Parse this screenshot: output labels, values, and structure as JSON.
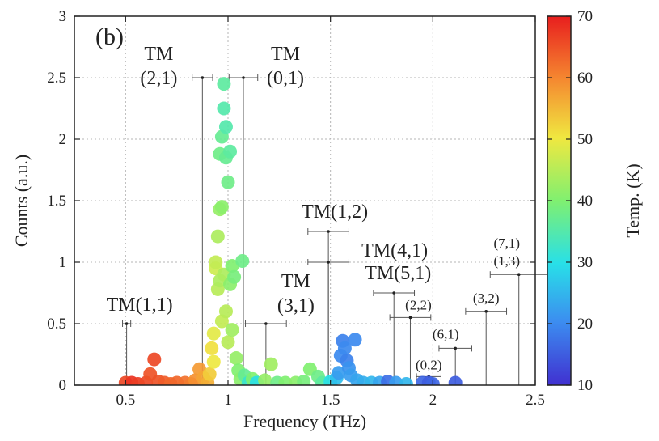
{
  "chart_data": {
    "type": "scatter",
    "panel_label": "(b)",
    "xlabel": "Frequency (THz)",
    "ylabel": "Counts (a.u.)",
    "colorbar_label": "Temp. (K)",
    "xlim": [
      0.25,
      2.5
    ],
    "ylim": [
      0,
      3
    ],
    "xticks": [
      "0.5",
      "1",
      "1.5",
      "2",
      "2.5"
    ],
    "yticks": [
      "0",
      "0.5",
      "1",
      "1.5",
      "2",
      "2.5",
      "3"
    ],
    "colorbar_range": [
      10,
      70
    ],
    "colorbar_ticks": [
      "10",
      "20",
      "30",
      "40",
      "50",
      "60",
      "70"
    ],
    "grid": true,
    "points": [
      {
        "x": 0.5,
        "y": 0.02,
        "t": 66
      },
      {
        "x": 0.53,
        "y": 0.02,
        "t": 68
      },
      {
        "x": 0.56,
        "y": 0.01,
        "t": 67
      },
      {
        "x": 0.6,
        "y": 0.02,
        "t": 66
      },
      {
        "x": 0.62,
        "y": 0.09,
        "t": 65
      },
      {
        "x": 0.64,
        "y": 0.21,
        "t": 66
      },
      {
        "x": 0.66,
        "y": 0.03,
        "t": 65
      },
      {
        "x": 0.69,
        "y": 0.02,
        "t": 64
      },
      {
        "x": 0.72,
        "y": 0.01,
        "t": 63
      },
      {
        "x": 0.75,
        "y": 0.02,
        "t": 63
      },
      {
        "x": 0.79,
        "y": 0.02,
        "t": 62
      },
      {
        "x": 0.82,
        "y": 0.01,
        "t": 61
      },
      {
        "x": 0.84,
        "y": 0.04,
        "t": 59
      },
      {
        "x": 0.86,
        "y": 0.13,
        "t": 58
      },
      {
        "x": 0.88,
        "y": 0.06,
        "t": 57
      },
      {
        "x": 0.9,
        "y": 0.02,
        "t": 56
      },
      {
        "x": 0.91,
        "y": 0.09,
        "t": 53
      },
      {
        "x": 0.92,
        "y": 0.3,
        "t": 51
      },
      {
        "x": 0.93,
        "y": 0.42,
        "t": 49
      },
      {
        "x": 0.93,
        "y": 0.19,
        "t": 50
      },
      {
        "x": 0.94,
        "y": 0.95,
        "t": 47
      },
      {
        "x": 0.94,
        "y": 1.0,
        "t": 46
      },
      {
        "x": 0.95,
        "y": 0.78,
        "t": 45
      },
      {
        "x": 0.95,
        "y": 1.21,
        "t": 44
      },
      {
        "x": 0.96,
        "y": 0.85,
        "t": 44
      },
      {
        "x": 0.96,
        "y": 1.43,
        "t": 42
      },
      {
        "x": 0.96,
        "y": 1.88,
        "t": 38
      },
      {
        "x": 0.97,
        "y": 2.02,
        "t": 37
      },
      {
        "x": 0.97,
        "y": 1.45,
        "t": 41
      },
      {
        "x": 0.97,
        "y": 0.52,
        "t": 46
      },
      {
        "x": 0.98,
        "y": 2.45,
        "t": 36
      },
      {
        "x": 0.98,
        "y": 0.9,
        "t": 44
      },
      {
        "x": 0.98,
        "y": 2.25,
        "t": 35
      },
      {
        "x": 0.99,
        "y": 2.1,
        "t": 35
      },
      {
        "x": 0.99,
        "y": 1.85,
        "t": 37
      },
      {
        "x": 0.99,
        "y": 0.6,
        "t": 45
      },
      {
        "x": 1.0,
        "y": 1.65,
        "t": 38
      },
      {
        "x": 1.0,
        "y": 0.35,
        "t": 45
      },
      {
        "x": 1.01,
        "y": 1.9,
        "t": 36
      },
      {
        "x": 1.01,
        "y": 0.82,
        "t": 41
      },
      {
        "x": 1.02,
        "y": 0.97,
        "t": 40
      },
      {
        "x": 1.02,
        "y": 0.45,
        "t": 43
      },
      {
        "x": 1.03,
        "y": 0.88,
        "t": 39
      },
      {
        "x": 1.04,
        "y": 0.22,
        "t": 42
      },
      {
        "x": 1.05,
        "y": 0.12,
        "t": 40
      },
      {
        "x": 1.06,
        "y": 0.05,
        "t": 41
      },
      {
        "x": 1.07,
        "y": 1.01,
        "t": 38
      },
      {
        "x": 1.08,
        "y": 0.08,
        "t": 37
      },
      {
        "x": 1.1,
        "y": 0.02,
        "t": 32
      },
      {
        "x": 1.12,
        "y": 0.05,
        "t": 40
      },
      {
        "x": 1.14,
        "y": 0.02,
        "t": 30
      },
      {
        "x": 1.18,
        "y": 0.04,
        "t": 42
      },
      {
        "x": 1.21,
        "y": 0.17,
        "t": 43
      },
      {
        "x": 1.24,
        "y": 0.02,
        "t": 38
      },
      {
        "x": 1.28,
        "y": 0.02,
        "t": 40
      },
      {
        "x": 1.33,
        "y": 0.02,
        "t": 41
      },
      {
        "x": 1.37,
        "y": 0.03,
        "t": 39
      },
      {
        "x": 1.4,
        "y": 0.13,
        "t": 40
      },
      {
        "x": 1.44,
        "y": 0.07,
        "t": 38
      },
      {
        "x": 1.46,
        "y": 0.02,
        "t": 36
      },
      {
        "x": 1.5,
        "y": 0.03,
        "t": 30
      },
      {
        "x": 1.53,
        "y": 0.06,
        "t": 26
      },
      {
        "x": 1.54,
        "y": 0.1,
        "t": 22
      },
      {
        "x": 1.55,
        "y": 0.24,
        "t": 20
      },
      {
        "x": 1.56,
        "y": 0.36,
        "t": 19
      },
      {
        "x": 1.57,
        "y": 0.3,
        "t": 20
      },
      {
        "x": 1.58,
        "y": 0.2,
        "t": 19
      },
      {
        "x": 1.59,
        "y": 0.14,
        "t": 21
      },
      {
        "x": 1.6,
        "y": 0.08,
        "t": 22
      },
      {
        "x": 1.62,
        "y": 0.37,
        "t": 20
      },
      {
        "x": 1.63,
        "y": 0.04,
        "t": 23
      },
      {
        "x": 1.66,
        "y": 0.02,
        "t": 24
      },
      {
        "x": 1.7,
        "y": 0.02,
        "t": 25
      },
      {
        "x": 1.74,
        "y": 0.02,
        "t": 23
      },
      {
        "x": 1.78,
        "y": 0.03,
        "t": 17
      },
      {
        "x": 1.82,
        "y": 0.02,
        "t": 22
      },
      {
        "x": 1.87,
        "y": 0.01,
        "t": 25
      },
      {
        "x": 1.95,
        "y": 0.02,
        "t": 16
      },
      {
        "x": 1.98,
        "y": 0.02,
        "t": 15
      },
      {
        "x": 2.0,
        "y": 0.01,
        "t": 16
      },
      {
        "x": 2.11,
        "y": 0.02,
        "t": 15
      }
    ],
    "mode_markers": [
      {
        "label_lines": [
          "TM(1,1)"
        ],
        "x": 0.505,
        "y": 0.5,
        "err": 0.02,
        "large": true
      },
      {
        "label_lines": [
          "TM",
          "(2,1)"
        ],
        "x": 0.875,
        "y": 2.5,
        "err": 0.05,
        "large": true
      },
      {
        "label_lines": [
          "TM",
          "(0,1)"
        ],
        "x": 1.075,
        "y": 2.5,
        "err": 0.07,
        "large": true
      },
      {
        "label_lines": [
          "TM",
          "(3,1)"
        ],
        "x": 1.185,
        "y": 0.5,
        "err": 0.1,
        "large": true
      },
      {
        "label_lines": [
          "TM(1,2)"
        ],
        "x": 1.49,
        "y": 1.25,
        "err": 0.1,
        "large": true
      },
      {
        "label_lines": [
          "TM(4,1)"
        ],
        "x": 1.49,
        "y": 1.0,
        "err": 0.1,
        "large": true
      },
      {
        "label_lines": [
          "TM(5,1)"
        ],
        "x": 1.81,
        "y": 0.75,
        "err": 0.1,
        "large": true
      },
      {
        "label_lines": [
          "(2,2)"
        ],
        "x": 1.89,
        "y": 0.55,
        "err": 0.1,
        "large": false
      },
      {
        "label_lines": [
          "(0,2)"
        ],
        "x": 1.98,
        "y": 0.07,
        "err": 0.06,
        "large": false
      },
      {
        "label_lines": [
          "(6,1)"
        ],
        "x": 2.11,
        "y": 0.3,
        "err": 0.08,
        "large": false
      },
      {
        "label_lines": [
          "(3,2)"
        ],
        "x": 2.26,
        "y": 0.6,
        "err": 0.1,
        "large": false
      },
      {
        "label_lines": [
          "(7,1)",
          "(1,3)"
        ],
        "x": 2.42,
        "y": 0.9,
        "err": 0.14,
        "large": false
      }
    ]
  }
}
